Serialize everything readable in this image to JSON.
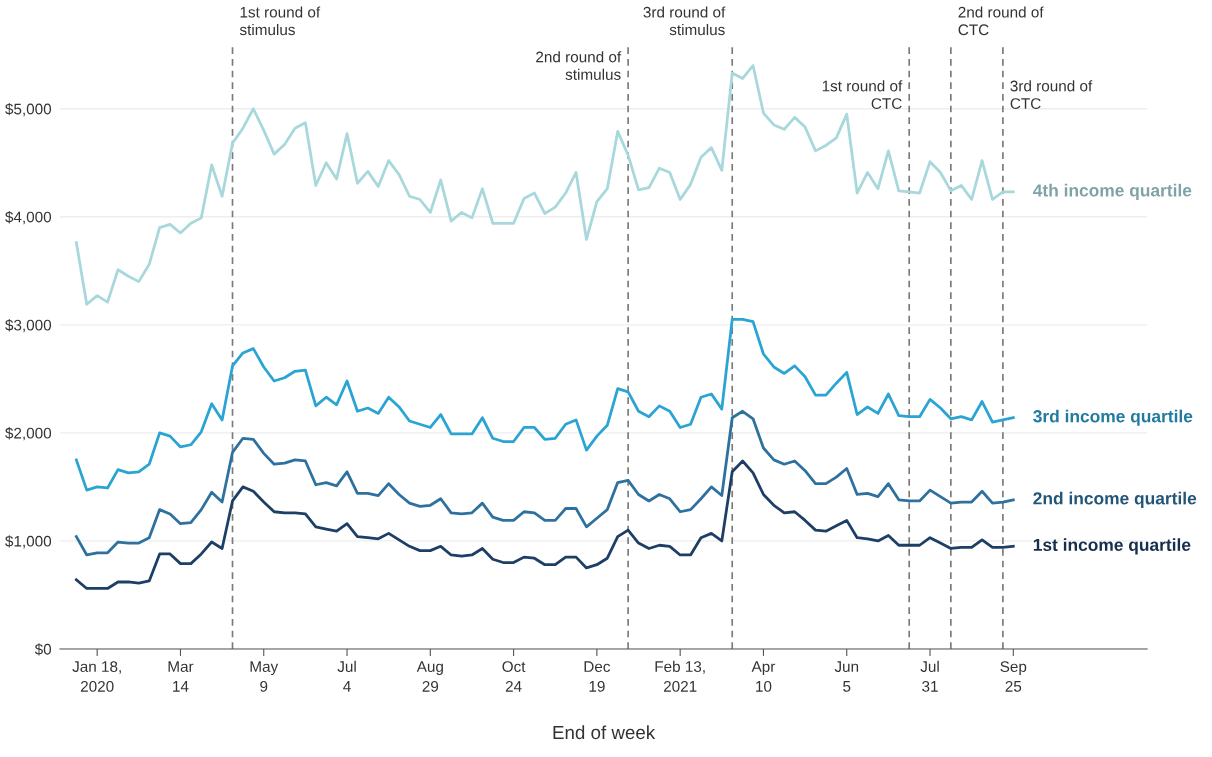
{
  "chart_data": {
    "type": "line",
    "xlabel": "End of week",
    "x": [
      "2020-01-04",
      "2020-01-11",
      "2020-01-18",
      "2020-01-25",
      "2020-02-01",
      "2020-02-08",
      "2020-02-15",
      "2020-02-22",
      "2020-02-29",
      "2020-03-07",
      "2020-03-14",
      "2020-03-21",
      "2020-03-28",
      "2020-04-04",
      "2020-04-11",
      "2020-04-18",
      "2020-04-25",
      "2020-05-02",
      "2020-05-09",
      "2020-05-16",
      "2020-05-23",
      "2020-05-30",
      "2020-06-06",
      "2020-06-13",
      "2020-06-20",
      "2020-06-27",
      "2020-07-04",
      "2020-07-11",
      "2020-07-18",
      "2020-07-25",
      "2020-08-01",
      "2020-08-08",
      "2020-08-15",
      "2020-08-22",
      "2020-08-29",
      "2020-09-05",
      "2020-09-12",
      "2020-09-19",
      "2020-09-26",
      "2020-10-03",
      "2020-10-10",
      "2020-10-17",
      "2020-10-24",
      "2020-10-31",
      "2020-11-07",
      "2020-11-14",
      "2020-11-21",
      "2020-11-28",
      "2020-12-05",
      "2020-12-12",
      "2020-12-19",
      "2020-12-26",
      "2021-01-02",
      "2021-01-09",
      "2021-01-16",
      "2021-01-23",
      "2021-01-30",
      "2021-02-06",
      "2021-02-13",
      "2021-02-20",
      "2021-02-27",
      "2021-03-06",
      "2021-03-13",
      "2021-03-20",
      "2021-03-27",
      "2021-04-03",
      "2021-04-10",
      "2021-04-17",
      "2021-04-24",
      "2021-05-01",
      "2021-05-08",
      "2021-05-15",
      "2021-05-22",
      "2021-05-29",
      "2021-06-05",
      "2021-06-12",
      "2021-06-19",
      "2021-06-26",
      "2021-07-03",
      "2021-07-10",
      "2021-07-17",
      "2021-07-24",
      "2021-07-31",
      "2021-08-07",
      "2021-08-14",
      "2021-08-21",
      "2021-08-28",
      "2021-09-04",
      "2021-09-11",
      "2021-09-18",
      "2021-09-25"
    ],
    "series": [
      {
        "name": "4th income quartile",
        "color": "#a8d8dc",
        "values": [
          3760,
          3190,
          3270,
          3210,
          3510,
          3450,
          3400,
          3560,
          3900,
          3930,
          3850,
          3940,
          3990,
          4480,
          4190,
          4680,
          4820,
          5000,
          4800,
          4580,
          4670,
          4820,
          4870,
          4290,
          4500,
          4350,
          4770,
          4310,
          4420,
          4280,
          4520,
          4390,
          4190,
          4160,
          4040,
          4340,
          3960,
          4040,
          3990,
          4260,
          3940,
          3940,
          3940,
          4170,
          4220,
          4030,
          4090,
          4220,
          4410,
          3790,
          4140,
          4260,
          4790,
          4570,
          4250,
          4270,
          4450,
          4410,
          4160,
          4300,
          4550,
          4640,
          4430,
          5330,
          5280,
          5400,
          4960,
          4850,
          4810,
          4920,
          4830,
          4610,
          4660,
          4730,
          4950,
          4220,
          4410,
          4260,
          4610,
          4240,
          4230,
          4220,
          4510,
          4410,
          4240,
          4290,
          4160,
          4520,
          4160,
          4230,
          4230
        ]
      },
      {
        "name": "3rd income quartile",
        "color": "#2aa4d2",
        "values": [
          1750,
          1470,
          1500,
          1490,
          1660,
          1630,
          1640,
          1710,
          2000,
          1970,
          1870,
          1890,
          2010,
          2270,
          2120,
          2620,
          2740,
          2780,
          2610,
          2480,
          2510,
          2570,
          2580,
          2250,
          2330,
          2260,
          2480,
          2200,
          2230,
          2180,
          2330,
          2240,
          2110,
          2080,
          2050,
          2170,
          1990,
          1990,
          1990,
          2140,
          1950,
          1920,
          1920,
          2050,
          2050,
          1940,
          1950,
          2080,
          2120,
          1840,
          1970,
          2070,
          2410,
          2380,
          2200,
          2150,
          2250,
          2200,
          2050,
          2080,
          2330,
          2360,
          2220,
          3050,
          3050,
          3030,
          2730,
          2610,
          2550,
          2620,
          2520,
          2350,
          2350,
          2460,
          2560,
          2170,
          2240,
          2180,
          2360,
          2160,
          2150,
          2150,
          2310,
          2230,
          2130,
          2150,
          2120,
          2290,
          2100,
          2120,
          2140
        ]
      },
      {
        "name": "2nd income quartile",
        "color": "#2e719f",
        "values": [
          1040,
          870,
          890,
          890,
          990,
          980,
          980,
          1030,
          1290,
          1250,
          1160,
          1170,
          1290,
          1450,
          1360,
          1820,
          1950,
          1940,
          1810,
          1710,
          1720,
          1750,
          1740,
          1520,
          1540,
          1510,
          1640,
          1440,
          1440,
          1420,
          1530,
          1430,
          1350,
          1320,
          1330,
          1390,
          1260,
          1250,
          1260,
          1350,
          1220,
          1190,
          1190,
          1270,
          1260,
          1190,
          1190,
          1300,
          1300,
          1130,
          1210,
          1290,
          1540,
          1560,
          1430,
          1370,
          1430,
          1390,
          1270,
          1290,
          1390,
          1500,
          1420,
          2140,
          2200,
          2130,
          1860,
          1750,
          1710,
          1740,
          1650,
          1530,
          1530,
          1590,
          1670,
          1430,
          1440,
          1410,
          1530,
          1380,
          1370,
          1370,
          1470,
          1410,
          1350,
          1360,
          1360,
          1460,
          1350,
          1360,
          1380
        ]
      },
      {
        "name": "1st income quartile",
        "color": "#1d3f66",
        "values": [
          640,
          560,
          560,
          560,
          620,
          620,
          610,
          630,
          880,
          880,
          790,
          790,
          880,
          990,
          930,
          1370,
          1500,
          1460,
          1360,
          1270,
          1260,
          1260,
          1250,
          1130,
          1110,
          1090,
          1160,
          1040,
          1030,
          1020,
          1070,
          1010,
          950,
          910,
          910,
          950,
          870,
          860,
          870,
          930,
          830,
          800,
          800,
          850,
          840,
          780,
          780,
          850,
          850,
          750,
          780,
          840,
          1040,
          1100,
          980,
          930,
          960,
          950,
          870,
          870,
          1030,
          1070,
          1000,
          1640,
          1740,
          1630,
          1430,
          1330,
          1260,
          1270,
          1190,
          1100,
          1090,
          1140,
          1190,
          1030,
          1020,
          1000,
          1050,
          960,
          960,
          960,
          1030,
          980,
          930,
          940,
          940,
          1010,
          940,
          940,
          950
        ]
      }
    ],
    "xlim": [
      "2019-12-24",
      "2021-12-24"
    ],
    "xticks": [
      {
        "value": "2020-01-18",
        "label": "Jan 18,\n2020"
      },
      {
        "value": "2020-03-14",
        "label": "Mar\n14"
      },
      {
        "value": "2020-05-09",
        "label": "May\n9"
      },
      {
        "value": "2020-07-04",
        "label": "Jul\n4"
      },
      {
        "value": "2020-08-29",
        "label": "Aug\n29"
      },
      {
        "value": "2020-10-24",
        "label": "Oct\n24"
      },
      {
        "value": "2020-12-19",
        "label": "Dec\n19"
      },
      {
        "value": "2021-02-13",
        "label": "Feb 13,\n2021"
      },
      {
        "value": "2021-04-10",
        "label": "Apr\n10"
      },
      {
        "value": "2021-06-05",
        "label": "Jun\n5"
      },
      {
        "value": "2021-07-31",
        "label": "Jul\n31"
      },
      {
        "value": "2021-09-25",
        "label": "Sep\n25"
      }
    ],
    "ylim": [
      0,
      5600
    ],
    "yticks": [
      {
        "value": 0,
        "label": "$0"
      },
      {
        "value": 1000,
        "label": "$1,000"
      },
      {
        "value": 2000,
        "label": "$2,000"
      },
      {
        "value": 3000,
        "label": "$3,000"
      },
      {
        "value": 4000,
        "label": "$4,000"
      },
      {
        "value": 5000,
        "label": "$5,000"
      }
    ],
    "ref_lines": [
      {
        "axis": "x",
        "value": "2020-04-18",
        "label": "1st round of\nstimulus",
        "color": "#7a7a7a",
        "line_style": "dashed"
      },
      {
        "axis": "x",
        "value": "2021-01-09",
        "label": "2nd round of\nstimulus",
        "color": "#7a7a7a",
        "line_style": "dashed"
      },
      {
        "axis": "x",
        "value": "2021-03-20",
        "label": "3rd round of\nstimulus",
        "color": "#7a7a7a",
        "line_style": "dashed"
      },
      {
        "axis": "x",
        "value": "2021-07-17",
        "label": "1st round of\nCTC",
        "color": "#7a7a7a",
        "line_style": "dashed"
      },
      {
        "axis": "x",
        "value": "2021-08-14",
        "label": "2nd round of\nCTC",
        "color": "#7a7a7a",
        "line_style": "dashed"
      },
      {
        "axis": "x",
        "value": "2021-09-18",
        "label": "3rd round of\nCTC",
        "color": "#7a7a7a",
        "line_style": "dashed"
      }
    ],
    "grid": "y",
    "legend": false,
    "marker": "none",
    "line_style": "solid"
  }
}
